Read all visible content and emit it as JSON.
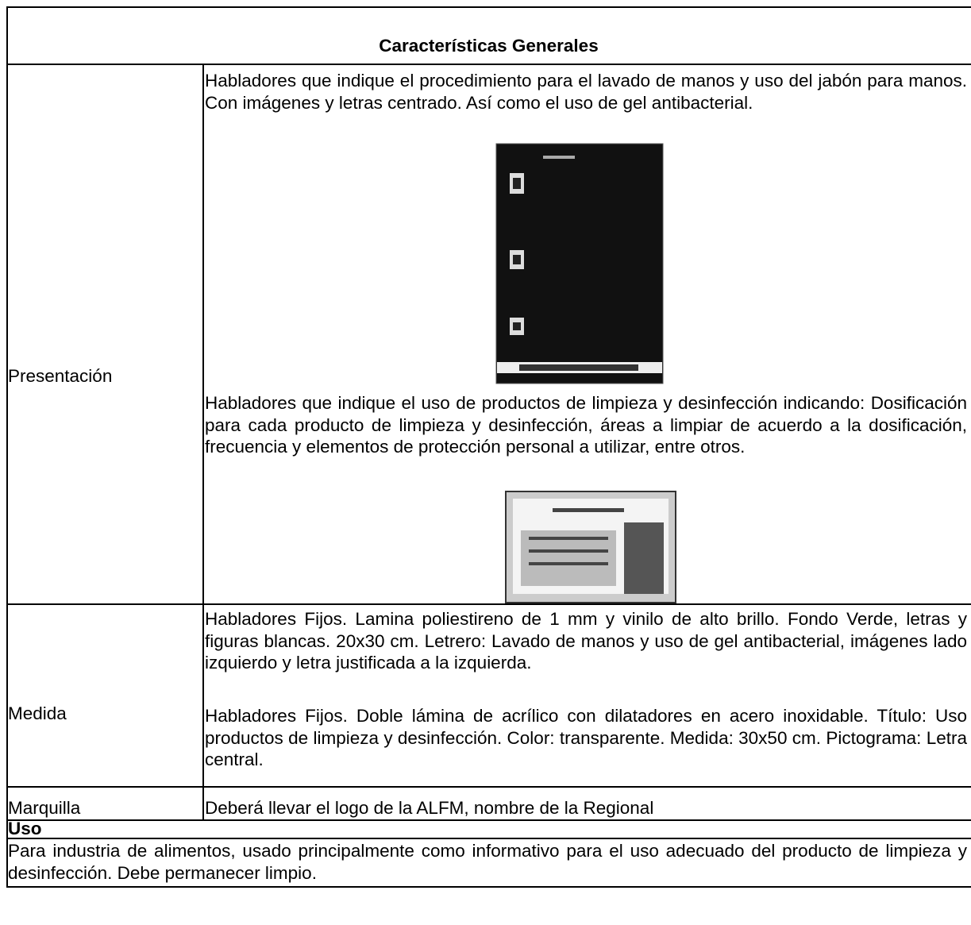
{
  "header": {
    "title": "Características Generales"
  },
  "rows": [
    {
      "label": "Presentación",
      "paragraphs": [
        "Habladores que indique el procedimiento para el lavado de manos y uso del jabón para manos. Con imágenes y letras centrado. Así como el uso de gel antibacterial.",
        "Habladores que indique el uso de productos de limpieza y desinfección indicando: Dosificación para cada producto de limpieza y desinfección, áreas a limpiar de acuerdo a la dosificación, frecuencia y elementos de protección personal a utilizar, entre otros."
      ]
    },
    {
      "label": "Medida",
      "paragraphs": [
        "Habladores Fijos. Lamina poliestireno de 1 mm y vinilo de alto brillo. Fondo Verde, letras y figuras blancas. 20x30 cm. Letrero: Lavado de manos y uso de gel antibacterial, imágenes lado izquierdo y letra justificada a la izquierda.",
        "Habladores Fijos. Doble lámina de acrílico con dilatadores en acero inoxidable. Título: Uso productos de limpieza y desinfección. Color: transparente. Medida: 30x50 cm. Pictograma: Letra central."
      ]
    },
    {
      "label": "Marquilla",
      "paragraphs": [
        "Deberá llevar el logo de la ALFM, nombre de la Regional"
      ]
    }
  ],
  "uso": {
    "label": "Uso",
    "text": "Para industria de alimentos, usado principalmente como informativo para el uso adecuado del producto de limpieza y desinfección. Debe permanecer limpio."
  }
}
